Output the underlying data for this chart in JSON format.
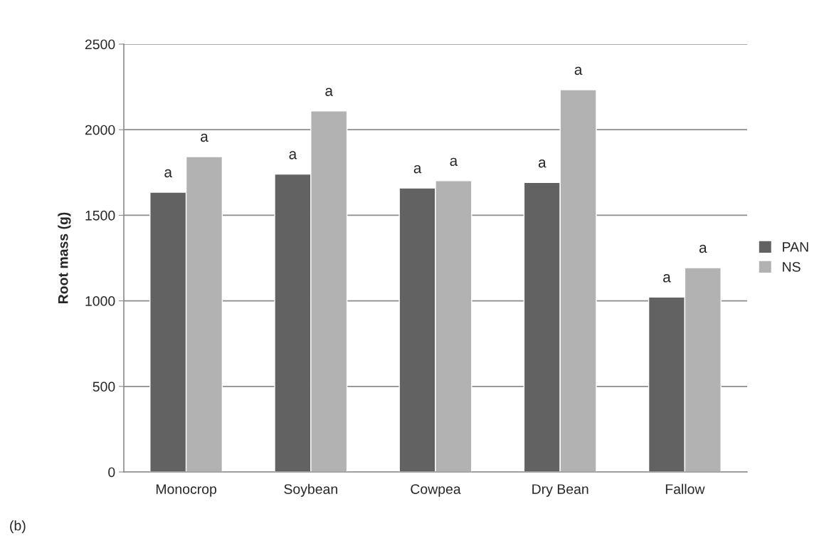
{
  "chart_data": {
    "type": "bar",
    "ylabel": "Root mass (g)",
    "categories": [
      "Monocrop",
      "Soybean",
      "Cowpea",
      "Dry Bean",
      "Fallow"
    ],
    "series": [
      {
        "name": "PAN",
        "color": "#626262",
        "values": [
          1635,
          1741,
          1659,
          1692,
          1022
        ],
        "value_labels": [
          "a",
          "a",
          "a",
          "a",
          "a"
        ]
      },
      {
        "name": "NS",
        "color": "#b2b2b2",
        "values": [
          1843,
          2110,
          1702,
          2234,
          1194
        ],
        "value_labels": [
          "a",
          "a",
          "a",
          "a",
          "a"
        ]
      }
    ],
    "ylim": [
      0,
      2500
    ],
    "yticks": [
      0,
      500,
      1000,
      1500,
      2000,
      2500
    ],
    "grid": "y",
    "legend": "right",
    "annotations": [
      "(b)"
    ]
  }
}
